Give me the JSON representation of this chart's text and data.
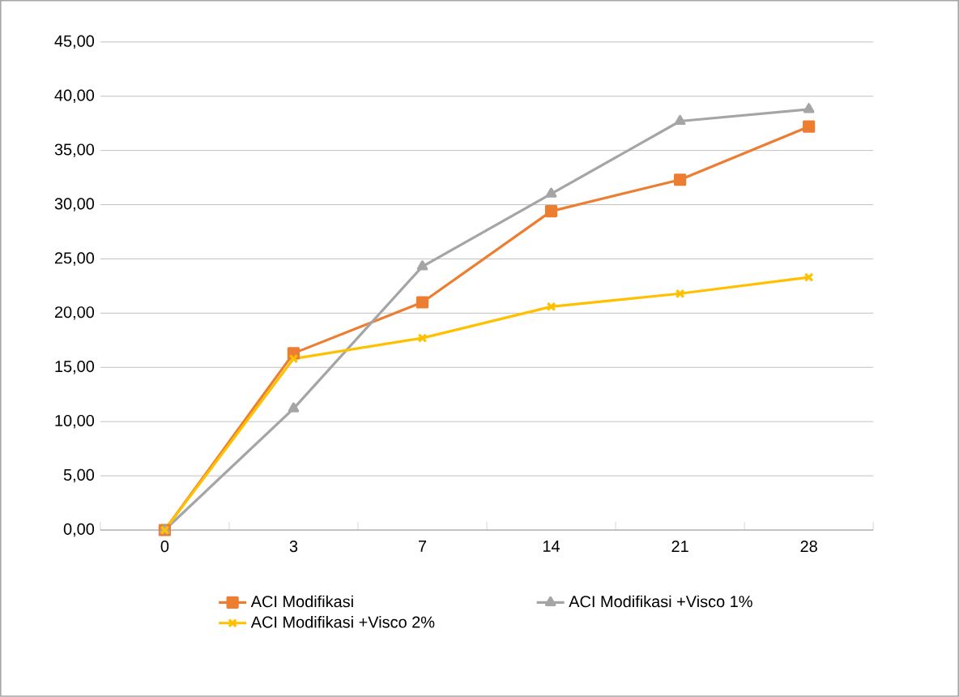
{
  "chart_data": {
    "type": "line",
    "categories": [
      "0",
      "3",
      "7",
      "14",
      "21",
      "28"
    ],
    "series": [
      {
        "name": "ACI Modifikasi",
        "color": "#ed7d31",
        "marker": "square",
        "values": [
          0,
          16.3,
          21.0,
          29.4,
          32.3,
          37.2
        ]
      },
      {
        "name": "ACI Modifikasi +Visco 1%",
        "color": "#a5a5a5",
        "marker": "triangle",
        "values": [
          0,
          11.2,
          24.3,
          31.0,
          37.7,
          38.8
        ]
      },
      {
        "name": "ACI Modifikasi +Visco 2%",
        "color": "#ffc000",
        "marker": "cross",
        "values": [
          0,
          15.8,
          17.7,
          20.6,
          21.8,
          23.3
        ]
      }
    ],
    "ylim": [
      0,
      45
    ],
    "yticks": [
      {
        "value": 0,
        "label": "0,00"
      },
      {
        "value": 5,
        "label": "5,00"
      },
      {
        "value": 10,
        "label": "10,00"
      },
      {
        "value": 15,
        "label": "15,00"
      },
      {
        "value": 20,
        "label": "20,00"
      },
      {
        "value": 25,
        "label": "25,00"
      },
      {
        "value": 30,
        "label": "30,00"
      },
      {
        "value": 35,
        "label": "35,00"
      },
      {
        "value": 40,
        "label": "40,00"
      },
      {
        "value": 45,
        "label": "45,00"
      }
    ],
    "grid": "y",
    "legend": "bottom",
    "line_style": "solid"
  }
}
